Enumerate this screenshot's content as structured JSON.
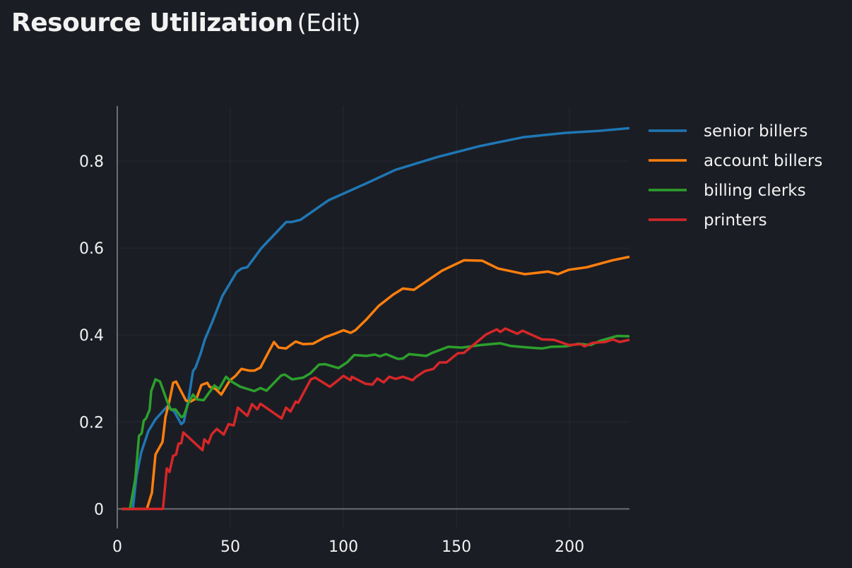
{
  "header": {
    "title": "Resource Utilization",
    "edit_label": "(Edit)"
  },
  "chart_data": {
    "type": "line",
    "title": "",
    "xlabel": "",
    "ylabel": "",
    "xlim": [
      0,
      226.5
    ],
    "ylim": [
      -0.045,
      0.927
    ],
    "grid": true,
    "legend_position": "right-top",
    "x_ticks": [
      0,
      50,
      100,
      150,
      200
    ],
    "x_tick_labels": [
      "0",
      "50",
      "100",
      "150",
      "200"
    ],
    "y_ticks": [
      0,
      0.2,
      0.4,
      0.6,
      0.8
    ],
    "y_tick_labels": [
      "0",
      "0.2",
      "0.4",
      "0.6",
      "0.8"
    ],
    "series": [
      {
        "name": "senior billers",
        "color": "#1f77b4",
        "points": [
          [
            2,
            0
          ],
          [
            6.9,
            0
          ],
          [
            8.5,
            0.076
          ],
          [
            10.6,
            0.13
          ],
          [
            13.75,
            0.179
          ],
          [
            16.9,
            0.206
          ],
          [
            22.1,
            0.236
          ],
          [
            25.2,
            0.224
          ],
          [
            28.3,
            0.195
          ],
          [
            29.4,
            0.2
          ],
          [
            31.5,
            0.252
          ],
          [
            33.5,
            0.317
          ],
          [
            34.6,
            0.325
          ],
          [
            36.9,
            0.358
          ],
          [
            38.75,
            0.39
          ],
          [
            42,
            0.43
          ],
          [
            46.5,
            0.49
          ],
          [
            52.8,
            0.545
          ],
          [
            55,
            0.553
          ],
          [
            57.5,
            0.556
          ],
          [
            63.75,
            0.6
          ],
          [
            74.7,
            0.66
          ],
          [
            77,
            0.66
          ],
          [
            81,
            0.665
          ],
          [
            93.4,
            0.71
          ],
          [
            110.6,
            0.75
          ],
          [
            123,
            0.78
          ],
          [
            141.9,
            0.81
          ],
          [
            160.6,
            0.835
          ],
          [
            179.4,
            0.855
          ],
          [
            198,
            0.865
          ],
          [
            213.75,
            0.87
          ],
          [
            226.5,
            0.876
          ]
        ]
      },
      {
        "name": "account billers",
        "color": "#ff7f0e",
        "points": [
          [
            2,
            0
          ],
          [
            13.1,
            0
          ],
          [
            15.3,
            0.037
          ],
          [
            16.9,
            0.125
          ],
          [
            20,
            0.154
          ],
          [
            21.3,
            0.211
          ],
          [
            23.1,
            0.249
          ],
          [
            24.7,
            0.29
          ],
          [
            26,
            0.293
          ],
          [
            30.4,
            0.249
          ],
          [
            32.5,
            0.247
          ],
          [
            35.1,
            0.255
          ],
          [
            37.2,
            0.285
          ],
          [
            39.8,
            0.29
          ],
          [
            40.8,
            0.281
          ],
          [
            43.4,
            0.276
          ],
          [
            46,
            0.263
          ],
          [
            49.7,
            0.295
          ],
          [
            52.3,
            0.306
          ],
          [
            54.9,
            0.322
          ],
          [
            58.5,
            0.318
          ],
          [
            60.6,
            0.318
          ],
          [
            63.3,
            0.325
          ],
          [
            66.6,
            0.358
          ],
          [
            69.3,
            0.384
          ],
          [
            71.4,
            0.371
          ],
          [
            74.6,
            0.369
          ],
          [
            78.9,
            0.385
          ],
          [
            82.2,
            0.379
          ],
          [
            86.5,
            0.38
          ],
          [
            91.9,
            0.395
          ],
          [
            96.2,
            0.403
          ],
          [
            100,
            0.411
          ],
          [
            103.2,
            0.405
          ],
          [
            105.3,
            0.411
          ],
          [
            110.2,
            0.436
          ],
          [
            115.6,
            0.467
          ],
          [
            122,
            0.493
          ],
          [
            126.3,
            0.507
          ],
          [
            131.2,
            0.504
          ],
          [
            137.1,
            0.525
          ],
          [
            143.6,
            0.548
          ],
          [
            153.3,
            0.572
          ],
          [
            161.4,
            0.571
          ],
          [
            168.4,
            0.553
          ],
          [
            180.2,
            0.54
          ],
          [
            190.5,
            0.546
          ],
          [
            194.8,
            0.54
          ],
          [
            199.6,
            0.55
          ],
          [
            207.7,
            0.556
          ],
          [
            219,
            0.572
          ],
          [
            226.5,
            0.58
          ]
        ]
      },
      {
        "name": "billing clerks",
        "color": "#2ca02c",
        "points": [
          [
            2,
            0
          ],
          [
            5.6,
            0
          ],
          [
            8,
            0.07
          ],
          [
            9.6,
            0.168
          ],
          [
            10.8,
            0.174
          ],
          [
            11.7,
            0.203
          ],
          [
            12.7,
            0.208
          ],
          [
            14.3,
            0.228
          ],
          [
            15,
            0.271
          ],
          [
            16.9,
            0.298
          ],
          [
            18.9,
            0.293
          ],
          [
            22.1,
            0.247
          ],
          [
            23.7,
            0.228
          ],
          [
            25.7,
            0.229
          ],
          [
            28.3,
            0.211
          ],
          [
            29.4,
            0.214
          ],
          [
            31.5,
            0.244
          ],
          [
            33.5,
            0.263
          ],
          [
            35.1,
            0.252
          ],
          [
            38.2,
            0.25
          ],
          [
            42.9,
            0.284
          ],
          [
            45,
            0.276
          ],
          [
            48.1,
            0.304
          ],
          [
            50.2,
            0.294
          ],
          [
            54.4,
            0.281
          ],
          [
            57.5,
            0.276
          ],
          [
            60.6,
            0.271
          ],
          [
            63.3,
            0.278
          ],
          [
            66,
            0.272
          ],
          [
            72.5,
            0.307
          ],
          [
            74.1,
            0.309
          ],
          [
            77.3,
            0.298
          ],
          [
            82.2,
            0.302
          ],
          [
            85.4,
            0.312
          ],
          [
            89.2,
            0.332
          ],
          [
            91.9,
            0.333
          ],
          [
            97.8,
            0.324
          ],
          [
            101.6,
            0.337
          ],
          [
            104.8,
            0.354
          ],
          [
            110.2,
            0.352
          ],
          [
            114,
            0.355
          ],
          [
            116.1,
            0.351
          ],
          [
            118.8,
            0.356
          ],
          [
            124.1,
            0.345
          ],
          [
            126.3,
            0.346
          ],
          [
            129,
            0.356
          ],
          [
            136.6,
            0.352
          ],
          [
            139.3,
            0.359
          ],
          [
            146.4,
            0.373
          ],
          [
            152.3,
            0.371
          ],
          [
            160.8,
            0.377
          ],
          [
            169.4,
            0.381
          ],
          [
            173.8,
            0.375
          ],
          [
            180.2,
            0.372
          ],
          [
            187.8,
            0.369
          ],
          [
            192,
            0.373
          ],
          [
            198.5,
            0.374
          ],
          [
            203.9,
            0.38
          ],
          [
            209.3,
            0.377
          ],
          [
            213.7,
            0.387
          ],
          [
            221.2,
            0.398
          ],
          [
            226.5,
            0.397
          ]
        ]
      },
      {
        "name": "printers",
        "color": "#d62728",
        "points": [
          [
            2,
            0
          ],
          [
            20.2,
            0
          ],
          [
            21.9,
            0.093
          ],
          [
            23.1,
            0.085
          ],
          [
            24.7,
            0.122
          ],
          [
            26,
            0.125
          ],
          [
            27.1,
            0.15
          ],
          [
            28.3,
            0.151
          ],
          [
            29.2,
            0.176
          ],
          [
            37.7,
            0.135
          ],
          [
            38.5,
            0.16
          ],
          [
            40.3,
            0.151
          ],
          [
            41.7,
            0.171
          ],
          [
            44,
            0.184
          ],
          [
            47.1,
            0.171
          ],
          [
            49.2,
            0.195
          ],
          [
            51.5,
            0.192
          ],
          [
            52.8,
            0.22
          ],
          [
            53.3,
            0.233
          ],
          [
            57.5,
            0.214
          ],
          [
            59.6,
            0.241
          ],
          [
            61.9,
            0.229
          ],
          [
            63.3,
            0.242
          ],
          [
            72.7,
            0.208
          ],
          [
            74.6,
            0.233
          ],
          [
            76.6,
            0.224
          ],
          [
            78.9,
            0.247
          ],
          [
            80,
            0.244
          ],
          [
            85.6,
            0.298
          ],
          [
            87.5,
            0.302
          ],
          [
            94,
            0.281
          ],
          [
            97.2,
            0.294
          ],
          [
            100,
            0.306
          ],
          [
            103.2,
            0.296
          ],
          [
            103.7,
            0.304
          ],
          [
            109.7,
            0.288
          ],
          [
            112.8,
            0.286
          ],
          [
            115,
            0.3
          ],
          [
            117.8,
            0.291
          ],
          [
            120.3,
            0.304
          ],
          [
            123.1,
            0.299
          ],
          [
            126.3,
            0.304
          ],
          [
            130.6,
            0.296
          ],
          [
            132.2,
            0.304
          ],
          [
            136,
            0.317
          ],
          [
            139.8,
            0.322
          ],
          [
            142.5,
            0.337
          ],
          [
            145.6,
            0.337
          ],
          [
            150.6,
            0.358
          ],
          [
            153.3,
            0.359
          ],
          [
            163,
            0.401
          ],
          [
            167.8,
            0.413
          ],
          [
            169.4,
            0.407
          ],
          [
            171.6,
            0.415
          ],
          [
            176.9,
            0.403
          ],
          [
            179.2,
            0.41
          ],
          [
            187.8,
            0.39
          ],
          [
            193.1,
            0.389
          ],
          [
            199.7,
            0.377
          ],
          [
            205,
            0.379
          ],
          [
            206.6,
            0.374
          ],
          [
            210.3,
            0.382
          ],
          [
            215.8,
            0.384
          ],
          [
            219.1,
            0.39
          ],
          [
            222.2,
            0.384
          ],
          [
            226.5,
            0.389
          ]
        ]
      }
    ]
  }
}
